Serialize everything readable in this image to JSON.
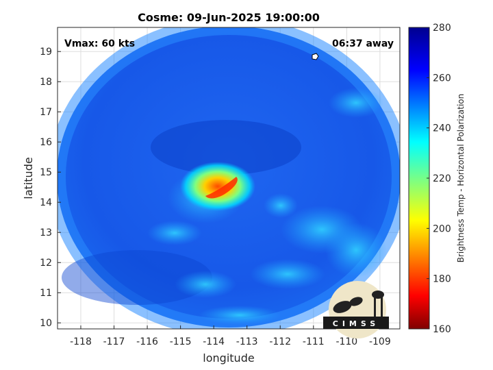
{
  "title": "Cosme: 09-Jun-2025 19:00:00",
  "vmax_label": "Vmax: 60 kts",
  "away_label": "06:37 away",
  "xlabel": "longitude",
  "ylabel": "latitude",
  "colorbar_label": "Brightness Temp - Horizontal Polarization",
  "logo_text": "CIMSS",
  "map": {
    "lon_range": [
      -118.7,
      -108.4
    ],
    "lat_range": [
      9.8,
      19.8
    ],
    "lon_ticks": [
      -118,
      -117,
      -116,
      -115,
      -114,
      -113,
      -112,
      -111,
      -110,
      -109
    ],
    "lat_ticks": [
      10,
      11,
      12,
      13,
      14,
      15,
      16,
      17,
      18,
      19
    ],
    "grid": true,
    "colorbar_range": [
      160,
      280
    ],
    "colorbar_ticks": [
      160,
      180,
      200,
      220,
      240,
      260,
      280
    ],
    "colormap": "jet",
    "storm_center": {
      "lon": -113.7,
      "lat": 14.6,
      "min_tb": 190
    },
    "background_tb": 262
  }
}
